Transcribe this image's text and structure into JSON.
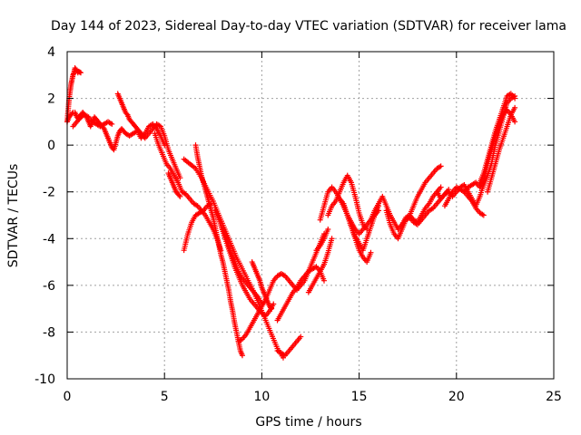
{
  "chart_data": {
    "type": "scatter",
    "title": "Day 144 of 2023, Sidereal Day-to-day VTEC variation (SDTVAR) for receiver lama",
    "xlabel": "GPS time / hours",
    "ylabel": "SDTVAR / TECUs",
    "xlim": [
      0,
      25
    ],
    "ylim": [
      -10,
      4
    ],
    "xticks": [
      0,
      5,
      10,
      15,
      20,
      25
    ],
    "yticks": [
      -10,
      -8,
      -6,
      -4,
      -2,
      0,
      2,
      4
    ],
    "grid": true,
    "marker": "+",
    "color": "#ff0000",
    "series": [
      {
        "x": [
          0.0,
          0.1,
          0.2,
          0.3,
          0.4,
          0.5,
          0.6,
          0.7,
          0.8,
          0.9,
          1.0,
          1.1,
          1.2,
          1.3,
          1.4,
          1.5,
          1.6,
          1.7,
          1.8,
          1.9,
          2.0,
          2.1,
          2.2,
          2.3,
          2.4,
          2.5,
          2.6,
          2.7,
          2.8,
          2.9,
          3.0,
          3.2,
          3.4,
          3.6,
          3.8,
          4.0,
          4.2,
          4.4,
          4.6,
          4.8,
          5.0
        ],
        "values": [
          1.0,
          1.2,
          1.3,
          1.4,
          1.4,
          1.2,
          1.1,
          1.3,
          1.4,
          1.3,
          1.2,
          1.0,
          0.8,
          1.0,
          1.2,
          1.1,
          1.0,
          0.9,
          0.8,
          0.7,
          0.5,
          0.3,
          0.1,
          -0.1,
          -0.2,
          0.1,
          0.4,
          0.6,
          0.7,
          0.6,
          0.5,
          0.4,
          0.5,
          0.6,
          0.3,
          0.5,
          0.8,
          0.9,
          0.7,
          0.4,
          0.0
        ]
      },
      {
        "x": [
          0.0,
          0.05,
          0.1,
          0.15,
          0.2,
          0.25,
          0.3,
          0.35,
          0.4,
          0.45,
          0.5,
          0.55,
          0.6,
          0.7
        ],
        "values": [
          1.0,
          1.5,
          2.0,
          2.3,
          2.6,
          2.8,
          3.0,
          3.1,
          3.3,
          3.25,
          3.2,
          3.1,
          3.15,
          3.1
        ]
      },
      {
        "x": [
          0.3,
          0.5,
          0.7,
          0.9,
          1.1,
          1.3,
          1.5,
          1.7,
          1.9,
          2.1,
          2.3
        ],
        "values": [
          0.8,
          1.0,
          1.2,
          1.3,
          1.2,
          1.0,
          0.9,
          0.8,
          0.9,
          1.0,
          0.9
        ]
      },
      {
        "x": [
          2.6,
          2.7,
          2.8,
          2.9,
          3.0,
          3.1,
          3.2,
          3.3,
          3.4,
          3.5,
          3.6,
          3.7,
          3.8,
          3.9,
          4.0,
          4.2,
          4.4,
          4.6,
          4.8,
          5.0,
          5.2,
          5.4,
          5.6,
          5.8
        ],
        "values": [
          2.2,
          2.0,
          1.8,
          1.6,
          1.4,
          1.3,
          1.1,
          1.0,
          0.9,
          0.8,
          0.7,
          0.6,
          0.5,
          0.4,
          0.3,
          0.5,
          0.7,
          0.9,
          0.8,
          0.4,
          -0.2,
          -0.6,
          -1.0,
          -1.4
        ]
      },
      {
        "x": [
          4.5,
          4.7,
          4.9,
          5.1,
          5.3,
          5.5,
          5.7,
          5.9,
          6.1,
          6.3,
          6.5,
          6.7,
          6.9,
          7.1,
          7.3,
          7.5,
          7.7,
          7.9
        ],
        "values": [
          0.5,
          0.0,
          -0.4,
          -0.8,
          -1.0,
          -1.3,
          -1.6,
          -2.0,
          -2.1,
          -2.3,
          -2.5,
          -2.6,
          -2.8,
          -3.0,
          -3.3,
          -3.6,
          -4.0,
          -4.5
        ]
      },
      {
        "x": [
          5.2,
          5.3,
          5.4,
          5.5,
          5.6,
          5.7,
          5.8
        ],
        "values": [
          -1.2,
          -1.4,
          -1.6,
          -1.8,
          -2.0,
          -2.1,
          -2.2
        ]
      },
      {
        "x": [
          6.0,
          6.2,
          6.4,
          6.6,
          6.8,
          7.0,
          7.2,
          7.4
        ],
        "values": [
          -4.5,
          -3.8,
          -3.3,
          -3.0,
          -2.9,
          -2.8,
          -2.6,
          -2.5
        ]
      },
      {
        "x": [
          6.6,
          6.7,
          6.8,
          6.9,
          7.0,
          7.1,
          7.2,
          7.3,
          7.4,
          7.5,
          7.6,
          7.7,
          7.8,
          7.9,
          8.0,
          8.1,
          8.2,
          8.3,
          8.4,
          8.5,
          8.6,
          8.7,
          8.8,
          8.9,
          9.0
        ],
        "values": [
          0.0,
          -0.5,
          -0.9,
          -1.3,
          -1.6,
          -1.9,
          -2.2,
          -2.5,
          -2.8,
          -3.1,
          -3.5,
          -3.9,
          -4.3,
          -4.7,
          -5.0,
          -5.4,
          -5.8,
          -6.2,
          -6.7,
          -7.1,
          -7.6,
          -8.0,
          -8.4,
          -8.8,
          -9.0
        ]
      },
      {
        "x": [
          6.0,
          6.3,
          6.6,
          6.9,
          7.2,
          7.5,
          7.8,
          8.1,
          8.4,
          8.7,
          9.0,
          9.3,
          9.6,
          9.9,
          10.2,
          10.5,
          10.8,
          11.1
        ],
        "values": [
          -0.6,
          -0.8,
          -1.0,
          -1.4,
          -1.9,
          -2.4,
          -3.0,
          -3.6,
          -4.2,
          -4.8,
          -5.3,
          -5.8,
          -6.3,
          -6.9,
          -7.5,
          -8.1,
          -8.7,
          -9.1
        ]
      },
      {
        "x": [
          7.6,
          7.8,
          8.0,
          8.2,
          8.4,
          8.6,
          8.8,
          9.0,
          9.2,
          9.4,
          9.6,
          9.8,
          10.0,
          10.2,
          10.4,
          10.6
        ],
        "values": [
          -2.8,
          -3.2,
          -3.7,
          -4.2,
          -4.7,
          -5.2,
          -5.6,
          -6.0,
          -6.3,
          -6.6,
          -6.8,
          -7.0,
          -7.2,
          -7.3,
          -7.1,
          -6.8
        ]
      },
      {
        "x": [
          8.0,
          8.2,
          8.4,
          8.6,
          8.8,
          9.0,
          9.2,
          9.4,
          9.6,
          9.8,
          10.0
        ],
        "values": [
          -3.6,
          -4.0,
          -4.6,
          -5.0,
          -5.4,
          -5.7,
          -5.9,
          -6.1,
          -6.3,
          -6.5,
          -6.8
        ]
      },
      {
        "x": [
          8.8,
          9.0,
          9.2,
          9.4,
          9.6,
          9.8,
          10.0,
          10.2
        ],
        "values": [
          -8.4,
          -8.3,
          -8.1,
          -7.8,
          -7.5,
          -7.2,
          -6.9,
          -6.6
        ]
      },
      {
        "x": [
          9.5,
          9.6,
          9.7,
          9.8,
          9.9,
          10.0,
          10.1,
          10.2,
          10.3,
          10.4,
          10.5
        ],
        "values": [
          -5.0,
          -5.2,
          -5.4,
          -5.6,
          -5.8,
          -6.1,
          -6.3,
          -6.5,
          -6.7,
          -6.9,
          -7.0
        ]
      },
      {
        "x": [
          10.2,
          10.4,
          10.6,
          10.8,
          11.0,
          11.2,
          11.4,
          11.6,
          11.8,
          12.0,
          12.2,
          12.4,
          12.6,
          12.8,
          13.0,
          13.2
        ],
        "values": [
          -6.6,
          -6.2,
          -5.8,
          -5.6,
          -5.5,
          -5.6,
          -5.8,
          -6.0,
          -6.2,
          -6.0,
          -5.8,
          -5.4,
          -5.0,
          -4.6,
          -4.2,
          -3.8
        ]
      },
      {
        "x": [
          10.8,
          11.0,
          11.2,
          11.4,
          11.6,
          11.8,
          12.0,
          12.2,
          12.4,
          12.6,
          12.8,
          13.0,
          13.2
        ],
        "values": [
          -7.5,
          -7.2,
          -6.9,
          -6.6,
          -6.3,
          -6.1,
          -5.8,
          -5.6,
          -5.4,
          -5.3,
          -5.2,
          -5.4,
          -5.8
        ]
      },
      {
        "x": [
          10.8,
          11.0,
          11.2,
          11.4,
          11.6,
          11.8,
          12.0
        ],
        "values": [
          -8.8,
          -8.9,
          -9.0,
          -8.8,
          -8.6,
          -8.4,
          -8.2
        ]
      },
      {
        "x": [
          12.4,
          12.6,
          12.8,
          13.0,
          13.2,
          13.4,
          13.6
        ],
        "values": [
          -6.3,
          -6.0,
          -5.7,
          -5.4,
          -5.1,
          -4.6,
          -4.0
        ]
      },
      {
        "x": [
          12.8,
          13.0,
          13.2,
          13.4
        ],
        "values": [
          -4.5,
          -4.3,
          -4.0,
          -3.6
        ]
      },
      {
        "x": [
          13.0,
          13.2,
          13.4,
          13.6,
          13.8,
          14.0,
          14.2,
          14.4,
          14.6,
          14.8,
          15.0,
          15.2,
          15.4,
          15.6,
          15.8,
          16.0
        ],
        "values": [
          -3.2,
          -2.6,
          -2.0,
          -1.8,
          -2.0,
          -2.3,
          -2.6,
          -3.0,
          -3.3,
          -3.6,
          -3.8,
          -3.6,
          -3.4,
          -3.2,
          -3.0,
          -2.8
        ]
      },
      {
        "x": [
          13.4,
          13.6,
          13.8,
          14.0,
          14.2,
          14.4,
          14.6,
          14.8,
          15.0,
          15.2,
          15.4
        ],
        "values": [
          -3.0,
          -2.6,
          -2.4,
          -2.0,
          -1.6,
          -1.3,
          -1.6,
          -2.2,
          -2.9,
          -3.4,
          -3.6
        ]
      },
      {
        "x": [
          14.0,
          14.2,
          14.4,
          14.6,
          14.8,
          15.0,
          15.2,
          15.4,
          15.6,
          15.8,
          16.0
        ],
        "values": [
          -2.3,
          -2.5,
          -3.0,
          -3.5,
          -3.9,
          -4.2,
          -4.5,
          -4.0,
          -3.5,
          -3.0,
          -2.6
        ]
      },
      {
        "x": [
          14.2,
          14.4,
          14.6,
          14.8,
          15.0,
          15.2,
          15.4,
          15.6
        ],
        "values": [
          -2.6,
          -3.0,
          -3.5,
          -4.0,
          -4.5,
          -4.8,
          -5.0,
          -4.6
        ]
      },
      {
        "x": [
          15.6,
          15.8,
          16.0,
          16.2,
          16.4,
          16.6,
          16.8,
          17.0,
          17.2,
          17.4,
          17.6,
          17.8,
          18.0,
          18.2,
          18.4,
          18.6,
          18.8,
          19.0,
          19.2
        ],
        "values": [
          -3.2,
          -2.8,
          -2.5,
          -2.2,
          -2.6,
          -3.0,
          -3.3,
          -3.6,
          -3.4,
          -3.1,
          -3.0,
          -3.2,
          -3.3,
          -3.0,
          -2.7,
          -2.5,
          -2.2,
          -2.0,
          -1.8
        ]
      },
      {
        "x": [
          16.4,
          16.6,
          16.8,
          17.0,
          17.2,
          17.4,
          17.6,
          17.8,
          18.0,
          18.2,
          18.4,
          18.6,
          18.8,
          19.0,
          19.2,
          19.4,
          19.6
        ],
        "values": [
          -2.8,
          -3.4,
          -3.8,
          -4.0,
          -3.6,
          -3.2,
          -3.1,
          -3.3,
          -3.4,
          -3.2,
          -3.0,
          -2.8,
          -2.7,
          -2.5,
          -2.3,
          -2.1,
          -1.9
        ]
      },
      {
        "x": [
          17.6,
          17.8,
          18.0,
          18.2,
          18.4,
          18.6,
          18.8,
          19.0,
          19.2
        ],
        "values": [
          -3.0,
          -2.6,
          -2.2,
          -1.9,
          -1.6,
          -1.4,
          -1.2,
          -1.0,
          -0.9
        ]
      },
      {
        "x": [
          19.0,
          19.2,
          19.4,
          19.6,
          19.8,
          20.0,
          20.2,
          20.4,
          20.6,
          20.8,
          21.0,
          21.2,
          21.4,
          21.6,
          21.8,
          22.0,
          22.2,
          22.4,
          22.6,
          22.8,
          23.0
        ],
        "values": [
          -2.0,
          -2.3,
          -2.1,
          -2.0,
          -2.2,
          -2.0,
          -1.8,
          -1.7,
          -2.0,
          -2.3,
          -2.6,
          -2.2,
          -1.7,
          -1.3,
          -0.8,
          0.0,
          0.6,
          1.2,
          1.8,
          2.0,
          2.1
        ]
      },
      {
        "x": [
          19.4,
          19.6,
          19.8,
          20.0,
          20.2,
          20.4,
          20.6,
          20.8,
          21.0,
          21.2,
          21.4
        ],
        "values": [
          -2.6,
          -2.3,
          -2.0,
          -1.8,
          -1.9,
          -2.0,
          -2.2,
          -2.4,
          -2.7,
          -2.9,
          -3.0
        ]
      },
      {
        "x": [
          20.4,
          20.6,
          20.8,
          21.0,
          21.2,
          21.4,
          21.6,
          21.8,
          22.0,
          22.2,
          22.4,
          22.6,
          22.8,
          23.0
        ],
        "values": [
          -2.0,
          -1.8,
          -1.7,
          -1.6,
          -1.8,
          -1.5,
          -0.8,
          -0.2,
          0.4,
          0.9,
          1.3,
          1.5,
          1.3,
          1.0
        ]
      },
      {
        "x": [
          21.2,
          21.4,
          21.6,
          21.8,
          22.0,
          22.2,
          22.4,
          22.6,
          22.8,
          23.0
        ],
        "values": [
          -1.6,
          -1.2,
          -0.6,
          0.0,
          0.6,
          1.1,
          1.6,
          2.1,
          2.2,
          2.0
        ]
      },
      {
        "x": [
          21.6,
          21.8,
          22.0,
          22.2,
          22.4,
          22.6,
          22.8,
          23.0
        ],
        "values": [
          -2.0,
          -1.4,
          -0.8,
          -0.2,
          0.3,
          0.8,
          1.3,
          1.6
        ]
      }
    ]
  }
}
